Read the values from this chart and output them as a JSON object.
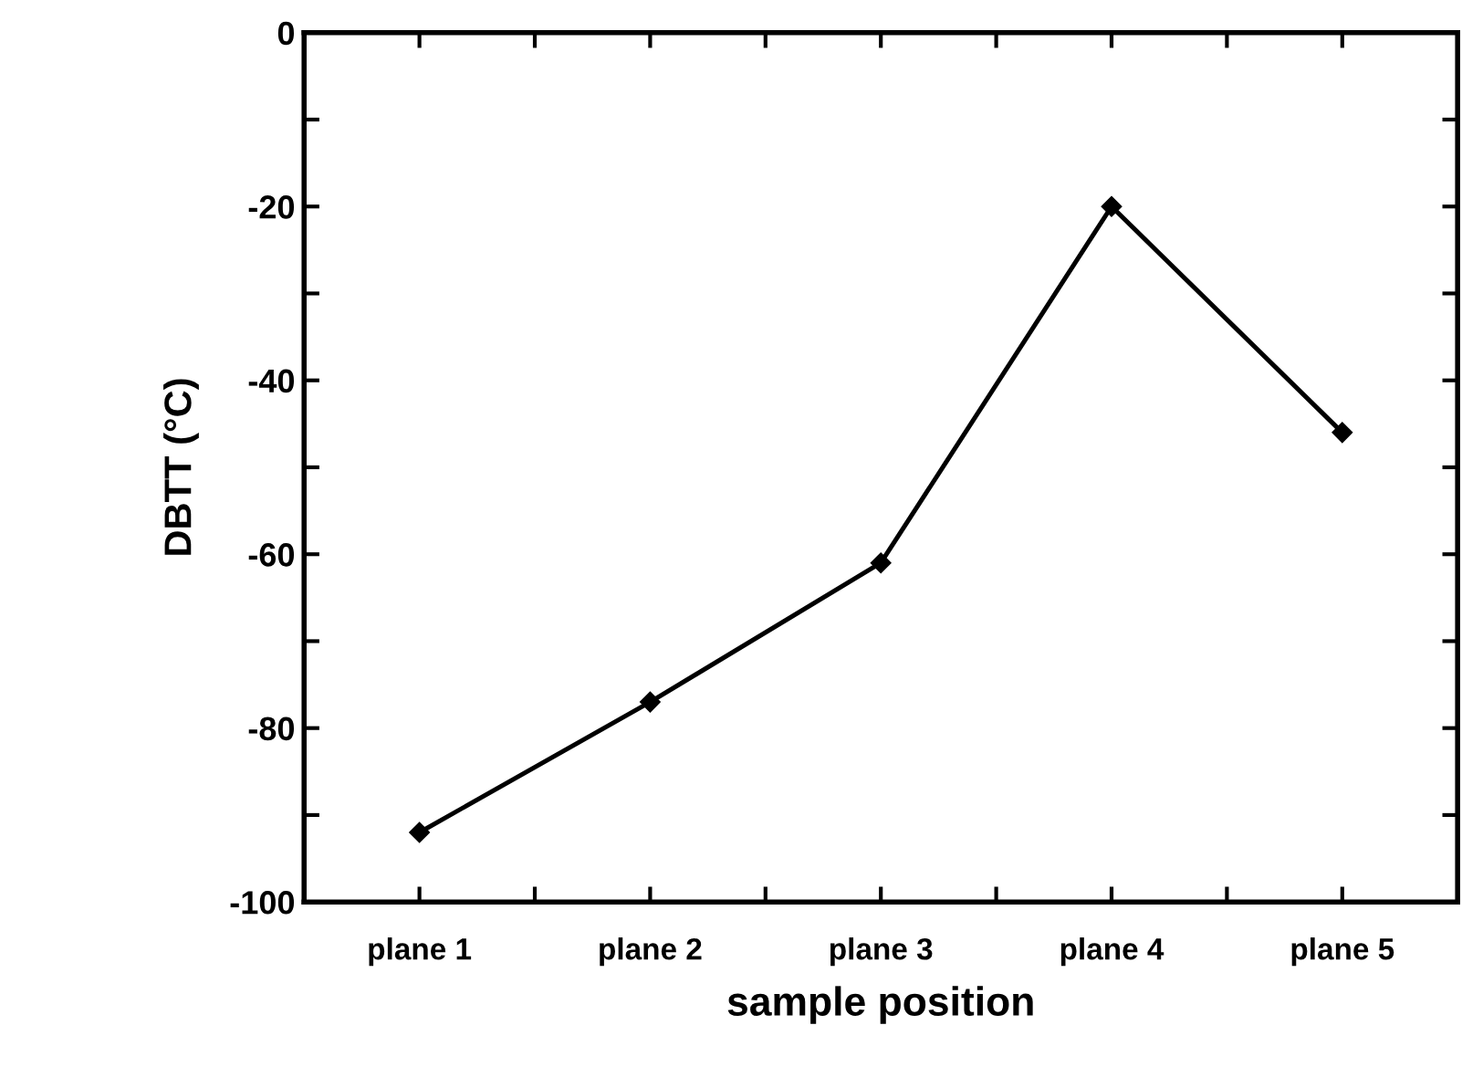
{
  "chart_data": {
    "type": "line",
    "xlabel": "sample position",
    "ylabel": "DBTT (°C)",
    "categories": [
      "plane 1",
      "plane 2",
      "plane 3",
      "plane 4",
      "plane 5"
    ],
    "series": [
      {
        "color": "#000000",
        "values": [
          -92,
          -77,
          -61,
          -20,
          -46
        ]
      }
    ],
    "ylim": [
      -100,
      0
    ],
    "yticks": [
      {
        "value": -100,
        "label": "-100"
      },
      {
        "value": -90,
        "label": null
      },
      {
        "value": -80,
        "label": "-80"
      },
      {
        "value": -70,
        "label": null
      },
      {
        "value": -60,
        "label": "-60"
      },
      {
        "value": -50,
        "label": null
      },
      {
        "value": -40,
        "label": "-40"
      },
      {
        "value": -30,
        "label": null
      },
      {
        "value": -20,
        "label": "-20"
      },
      {
        "value": -10,
        "label": null
      },
      {
        "value": 0,
        "label": "0"
      }
    ],
    "grid": false,
    "legend": false,
    "marker": "diamond",
    "line_style": "solid"
  }
}
